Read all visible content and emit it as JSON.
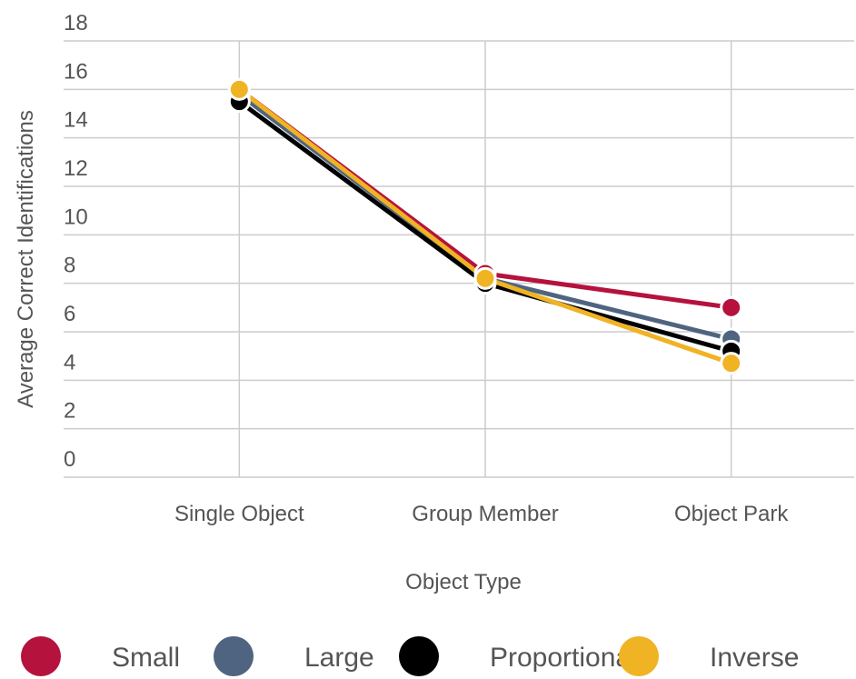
{
  "chart_data": {
    "type": "line",
    "x_label": "Object Type",
    "y_label": "Average Correct Identifications",
    "categories": [
      "Single Object",
      "Group Member",
      "Object Park"
    ],
    "series": [
      {
        "name": "Small",
        "color": "#b5123e",
        "values": [
          16.0,
          8.4,
          7.0
        ]
      },
      {
        "name": "Large",
        "color": "#4f6480",
        "values": [
          15.8,
          8.2,
          5.7
        ]
      },
      {
        "name": "Proportional",
        "color": "#000000",
        "values": [
          15.5,
          8.0,
          5.2
        ]
      },
      {
        "name": "Inverse",
        "color": "#f0b323",
        "values": [
          16.0,
          8.2,
          4.7
        ]
      }
    ],
    "ylim": [
      0,
      18
    ],
    "yticks": [
      0,
      2,
      4,
      6,
      8,
      10,
      12,
      14,
      16,
      18
    ],
    "grid": true,
    "legend": "bottom"
  }
}
